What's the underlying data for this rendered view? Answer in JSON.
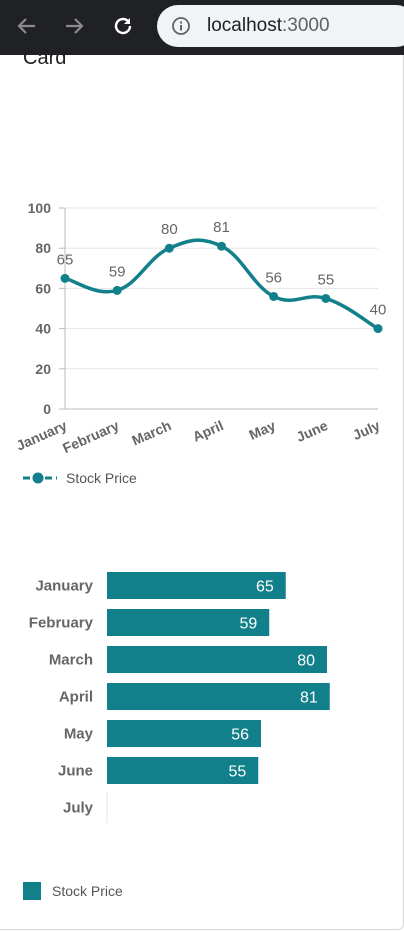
{
  "browser": {
    "url_host": "localhost",
    "url_port": ":3000"
  },
  "card": {
    "title": "Card"
  },
  "colors": {
    "series": "#12808a",
    "grid": "#e5e5e5",
    "axis_text": "#666666"
  },
  "chart_data": [
    {
      "type": "line",
      "categories": [
        "January",
        "February",
        "March",
        "April",
        "May",
        "June",
        "July"
      ],
      "series": [
        {
          "name": "Stock Price",
          "values": [
            65,
            59,
            80,
            81,
            56,
            55,
            40
          ]
        }
      ],
      "ylim": [
        0,
        100
      ],
      "yticks": [
        0,
        20,
        40,
        60,
        80,
        100
      ],
      "grid": true,
      "smooth": true,
      "data_labels": true,
      "legend": "bottom-left"
    },
    {
      "type": "bar",
      "orientation": "horizontal",
      "categories": [
        "January",
        "February",
        "March",
        "April",
        "May",
        "June",
        "July"
      ],
      "series": [
        {
          "name": "Stock Price",
          "values": [
            65,
            59,
            80,
            81,
            56,
            55,
            null
          ]
        }
      ],
      "data_labels": true,
      "legend": "bottom-left"
    }
  ]
}
